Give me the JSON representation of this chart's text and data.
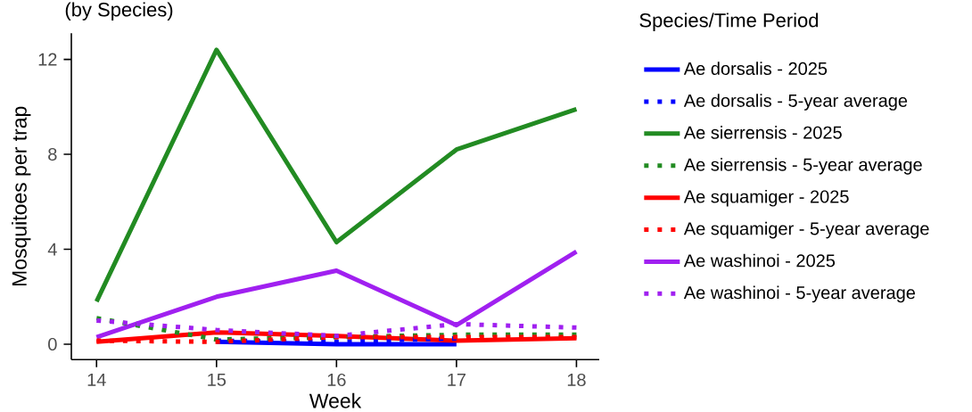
{
  "chart_data": {
    "type": "line",
    "subtitle": "(by Species)",
    "xlabel": "Week",
    "ylabel": "Mosquitoes per trap",
    "legend_title": "Species/Time Period",
    "x": [
      14,
      15,
      16,
      17,
      18
    ],
    "xlim": [
      13.79,
      18.19
    ],
    "xticks": [
      14,
      15,
      16,
      17,
      18
    ],
    "ylim": [
      -0.65,
      13.1
    ],
    "yticks": [
      0,
      4,
      8,
      12
    ],
    "grid": false,
    "legend": "right",
    "marker": "none",
    "series": [
      {
        "name": "Ae dorsalis - 2025",
        "color": "#0000ff",
        "line_style": "solid",
        "values": [
          null,
          0.1,
          0.0,
          0.0,
          null
        ]
      },
      {
        "name": "Ae dorsalis - 5-year average",
        "color": "#0000ff",
        "line_style": "dotted",
        "values": [
          null,
          0.15,
          0.1,
          0.25,
          null
        ]
      },
      {
        "name": "Ae sierrensis - 2025",
        "color": "#228b22",
        "line_style": "solid",
        "values": [
          1.8,
          12.4,
          4.3,
          8.2,
          9.9
        ]
      },
      {
        "name": "Ae sierrensis - 5-year average",
        "color": "#228b22",
        "line_style": "dotted",
        "values": [
          1.1,
          0.2,
          0.3,
          0.4,
          0.4
        ]
      },
      {
        "name": "Ae squamiger - 2025",
        "color": "#ff0000",
        "line_style": "solid",
        "values": [
          0.1,
          0.5,
          0.35,
          0.15,
          0.25
        ]
      },
      {
        "name": "Ae squamiger - 5-year average",
        "color": "#ff0000",
        "line_style": "dotted",
        "values": [
          0.15,
          0.1,
          0.3,
          0.3,
          0.3
        ]
      },
      {
        "name": "Ae washinoi - 2025",
        "color": "#a020f0",
        "line_style": "solid",
        "values": [
          0.3,
          2.0,
          3.1,
          0.8,
          3.9
        ]
      },
      {
        "name": "Ae washinoi - 5-year average",
        "color": "#a020f0",
        "line_style": "dotted",
        "values": [
          1.0,
          0.6,
          0.35,
          0.85,
          0.7
        ]
      }
    ]
  }
}
